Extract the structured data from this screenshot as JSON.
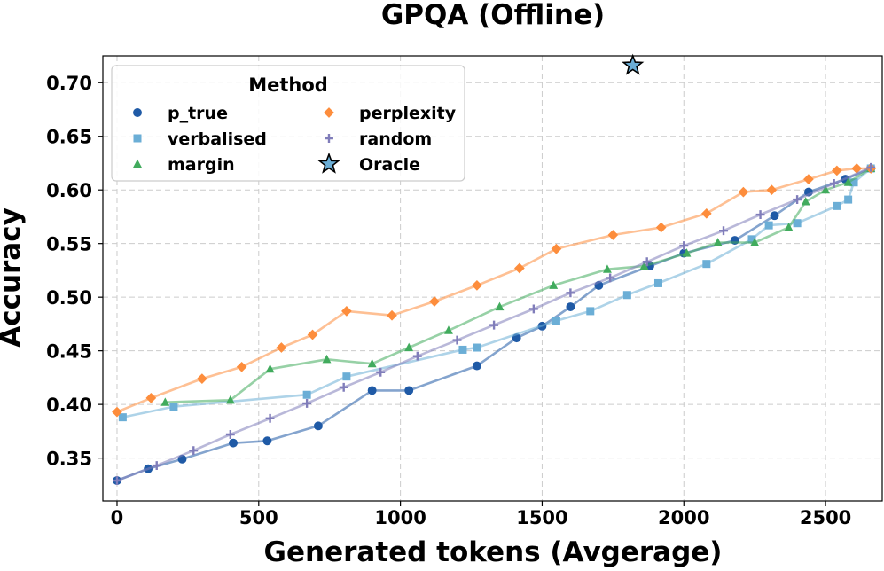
{
  "chart_data": {
    "type": "line",
    "title": "GPQA (Offline)",
    "xlabel": "Generated tokens (Avgerage)",
    "ylabel": "Accuracy",
    "xlim": [
      -50,
      2700
    ],
    "ylim": [
      0.31,
      0.725
    ],
    "xticks": [
      0,
      500,
      1000,
      1500,
      2000,
      2500
    ],
    "yticks": [
      0.35,
      0.4,
      0.45,
      0.5,
      0.55,
      0.6,
      0.65,
      0.7
    ],
    "ytick_labels": [
      "0.35",
      "0.40",
      "0.45",
      "0.50",
      "0.55",
      "0.60",
      "0.65",
      "0.70"
    ],
    "grid": true,
    "legend": {
      "title": "Method",
      "placement": "top-left",
      "columns": 2
    },
    "series": [
      {
        "name": "p_true",
        "color": "#1f5aa6",
        "marker": "circle",
        "x": [
          0,
          110,
          230,
          410,
          530,
          710,
          900,
          1030,
          1270,
          1410,
          1500,
          1600,
          1700,
          1880,
          2000,
          2180,
          2320,
          2440,
          2570,
          2660
        ],
        "y": [
          0.329,
          0.34,
          0.349,
          0.364,
          0.366,
          0.38,
          0.413,
          0.413,
          0.436,
          0.462,
          0.473,
          0.491,
          0.511,
          0.529,
          0.541,
          0.553,
          0.576,
          0.598,
          0.61,
          0.62
        ]
      },
      {
        "name": "verbalised",
        "color": "#6baed6",
        "marker": "square",
        "x": [
          20,
          200,
          670,
          810,
          1220,
          1270,
          1550,
          1670,
          1800,
          1910,
          2080,
          2240,
          2300,
          2400,
          2540,
          2580,
          2600,
          2660
        ],
        "y": [
          0.388,
          0.398,
          0.409,
          0.426,
          0.451,
          0.453,
          0.478,
          0.487,
          0.502,
          0.513,
          0.531,
          0.554,
          0.567,
          0.569,
          0.585,
          0.591,
          0.607,
          0.62
        ]
      },
      {
        "name": "margin",
        "color": "#41ab5d",
        "marker": "triangle",
        "x": [
          170,
          400,
          540,
          740,
          900,
          1030,
          1170,
          1350,
          1540,
          1730,
          1860,
          2010,
          2120,
          2250,
          2370,
          2430,
          2500,
          2580,
          2660
        ],
        "y": [
          0.402,
          0.404,
          0.433,
          0.442,
          0.438,
          0.453,
          0.469,
          0.491,
          0.511,
          0.526,
          0.529,
          0.541,
          0.551,
          0.551,
          0.565,
          0.589,
          0.6,
          0.607,
          0.62
        ]
      },
      {
        "name": "perplexity",
        "color": "#fd8d3c",
        "marker": "diamond",
        "x": [
          0,
          120,
          300,
          440,
          580,
          690,
          810,
          970,
          1120,
          1270,
          1420,
          1550,
          1750,
          1920,
          2080,
          2210,
          2310,
          2440,
          2540,
          2610,
          2660
        ],
        "y": [
          0.393,
          0.406,
          0.424,
          0.435,
          0.453,
          0.465,
          0.487,
          0.483,
          0.496,
          0.511,
          0.527,
          0.545,
          0.558,
          0.565,
          0.578,
          0.598,
          0.6,
          0.61,
          0.618,
          0.62,
          0.62
        ]
      },
      {
        "name": "random",
        "color": "#807dba",
        "marker": "plus",
        "x": [
          0,
          140,
          270,
          400,
          540,
          670,
          800,
          930,
          1060,
          1200,
          1330,
          1470,
          1600,
          1740,
          1870,
          2000,
          2140,
          2270,
          2400,
          2530,
          2660
        ],
        "y": [
          0.329,
          0.343,
          0.357,
          0.372,
          0.387,
          0.401,
          0.416,
          0.43,
          0.445,
          0.46,
          0.474,
          0.489,
          0.504,
          0.518,
          0.533,
          0.548,
          0.562,
          0.577,
          0.591,
          0.606,
          0.621
        ]
      },
      {
        "name": "Oracle",
        "color": "#6baed6",
        "marker": "star",
        "x": [
          1820
        ],
        "y": [
          0.716
        ]
      }
    ]
  }
}
